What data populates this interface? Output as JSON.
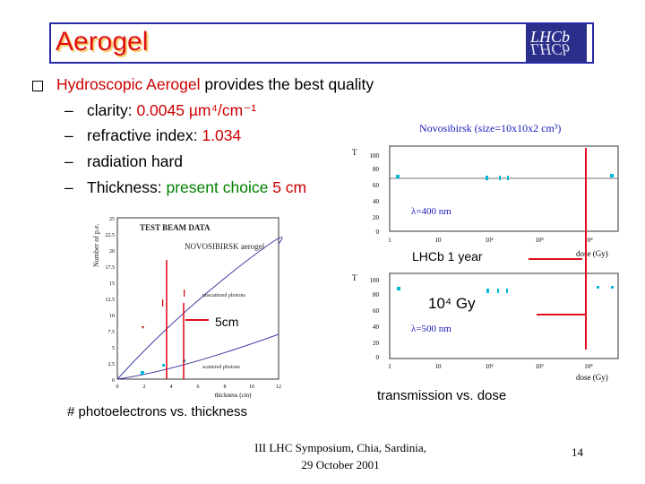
{
  "title": "Aerogel",
  "logo_text": "LHCb",
  "bullet": {
    "pre": "Hydroscopic Aerogel",
    "post": " provides the best quality"
  },
  "items": [
    {
      "label": "clarity: ",
      "value": "0.0045 µm⁴/cm⁻¹"
    },
    {
      "label": "refractive index: ",
      "value": "1.034"
    },
    {
      "label": "radiation hard",
      "value": ""
    },
    {
      "label": "Thickness: ",
      "mid": "present choice",
      "value": " 5 cm"
    }
  ],
  "dash": "–",
  "left_plot": {
    "title": "TEST BEAM DATA",
    "subtitle": "NOVOSIBIRSK aerogel",
    "ylabel": "Number of p.e.",
    "xlabel": "thickness (cm)",
    "yticks": [
      "25",
      "22.5",
      "20",
      "17.5",
      "15",
      "12.5",
      "10",
      "7.5",
      "5",
      "2.5",
      "0"
    ],
    "xticks": [
      "0",
      "2",
      "4",
      "6",
      "8",
      "10",
      "12"
    ],
    "label_unscattered": "unscattered photons",
    "label_scattered": "scattered photons",
    "annotation": "5cm",
    "caption": "# photoelectrons vs. thickness"
  },
  "right_top": {
    "title": "Novosibirsk (size=10x10x2 cm³)",
    "lambda": "λ=400 nm",
    "ylabel": "T",
    "yticks": [
      "100",
      "80",
      "60",
      "40",
      "20",
      "0"
    ],
    "xticks": [
      "1",
      "10",
      "10²",
      "10³",
      "10⁴"
    ],
    "xlabel": "dose (Gy)",
    "annotation": "LHCb 1 year"
  },
  "right_bottom": {
    "lambda": "λ=500 nm",
    "ylabel": "T",
    "yticks": [
      "100",
      "80",
      "60",
      "40",
      "20",
      "0"
    ],
    "xticks": [
      "1",
      "10",
      "10²",
      "10³",
      "10⁴"
    ],
    "xlabel": "dose (Gy)",
    "annotation": "10⁴ Gy",
    "caption": "transmission vs. dose"
  },
  "footer": {
    "line1": "III LHC Symposium, Chia, Sardinia,",
    "line2": "29 October 2001",
    "page": "14"
  }
}
